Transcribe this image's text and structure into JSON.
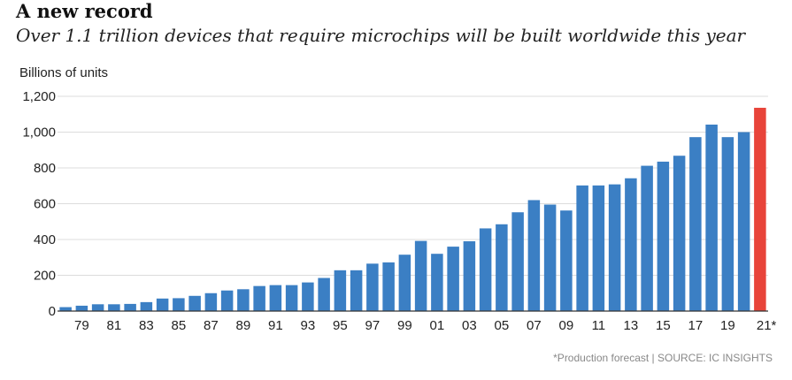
{
  "header": {
    "title": "A new record",
    "subtitle": "Over 1.1 trillion devices that require microchips will be built worldwide this year"
  },
  "footer": {
    "source": "*Production forecast | SOURCE: IC INSIGHTS"
  },
  "colors": {
    "bar": "#3b7fc4",
    "highlight": "#e8443a",
    "grid": "#dcdcdc",
    "axis": "#333333"
  },
  "chart_data": {
    "type": "bar",
    "ylabel": "Billions of units",
    "xlabel": "",
    "ylim": [
      0,
      1200
    ],
    "yticks": [
      "0",
      "200",
      "400",
      "600",
      "800",
      "1,000",
      "1,200"
    ],
    "ytick_values": [
      0,
      200,
      400,
      600,
      800,
      1000,
      1200
    ],
    "categories": [
      "1978",
      "1979",
      "1980",
      "1981",
      "1982",
      "1983",
      "1984",
      "1985",
      "1986",
      "1987",
      "1988",
      "1989",
      "1990",
      "1991",
      "1992",
      "1993",
      "1994",
      "1995",
      "1996",
      "1997",
      "1998",
      "1999",
      "2000",
      "2001",
      "2002",
      "2003",
      "2004",
      "2005",
      "2006",
      "2007",
      "2008",
      "2009",
      "2010",
      "2011",
      "2012",
      "2013",
      "2014",
      "2015",
      "2016",
      "2017",
      "2018",
      "2019",
      "2020",
      "2021*"
    ],
    "xtick_labels": [
      "79",
      "81",
      "83",
      "85",
      "87",
      "89",
      "91",
      "93",
      "95",
      "97",
      "99",
      "01",
      "03",
      "05",
      "07",
      "09",
      "11",
      "13",
      "15",
      "17",
      "19",
      "21*"
    ],
    "xtick_categories": [
      "1979",
      "1981",
      "1983",
      "1985",
      "1987",
      "1989",
      "1991",
      "1993",
      "1995",
      "1997",
      "1999",
      "2001",
      "2003",
      "2005",
      "2007",
      "2009",
      "2011",
      "2013",
      "2015",
      "2017",
      "2019",
      "2021*"
    ],
    "values": [
      22,
      30,
      38,
      38,
      40,
      50,
      70,
      72,
      85,
      100,
      115,
      122,
      140,
      145,
      145,
      160,
      185,
      228,
      228,
      265,
      272,
      315,
      392,
      320,
      360,
      390,
      462,
      485,
      552,
      620,
      595,
      562,
      702,
      702,
      708,
      742,
      812,
      835,
      868,
      972,
      1042,
      972,
      1000,
      1136
    ],
    "highlight_category": "2021*",
    "grid": true,
    "legend": "none"
  }
}
